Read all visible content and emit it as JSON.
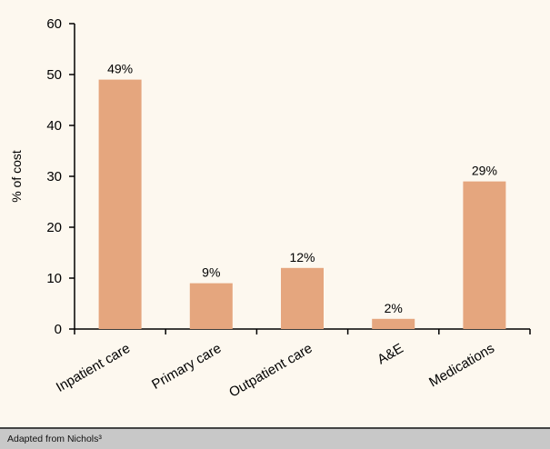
{
  "chart_data": {
    "type": "bar",
    "categories": [
      "Inpatient care",
      "Primary care",
      "Outpatient care",
      "A&E",
      "Medications"
    ],
    "values": [
      49,
      9,
      12,
      2,
      29
    ],
    "data_labels": [
      "49%",
      "9%",
      "12%",
      "2%",
      "29%"
    ],
    "ylabel": "% of cost",
    "ylim": [
      0,
      60
    ],
    "yticks": [
      0,
      10,
      20,
      30,
      40,
      50,
      60
    ],
    "bar_color": "#e5a67e",
    "grid": false
  },
  "footer": {
    "note": "Adapted from Nichols³"
  }
}
